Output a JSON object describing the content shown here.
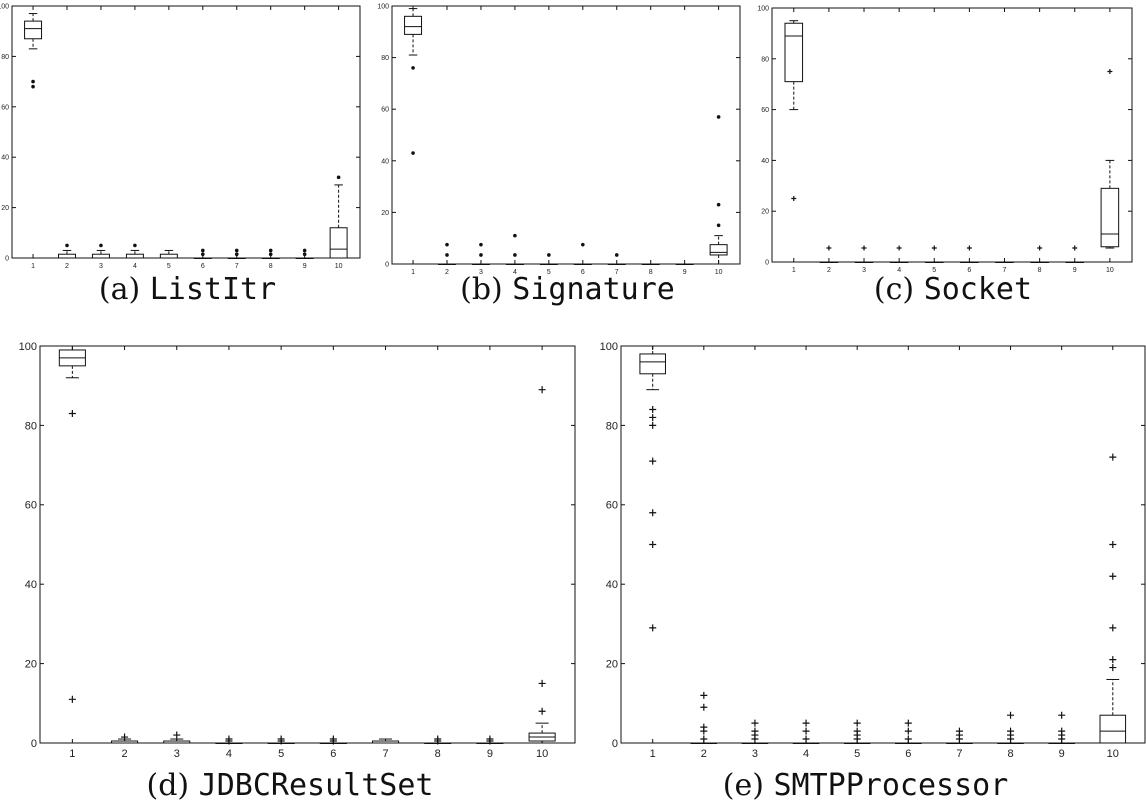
{
  "chart_data": [
    {
      "type": "boxplot",
      "caption_prefix": "(a)",
      "caption_name": "ListItr",
      "x": [
        1,
        2,
        3,
        4,
        5,
        6,
        7,
        8,
        9,
        10
      ],
      "ylim": [
        0,
        100
      ],
      "yticks": [
        0,
        20,
        40,
        60,
        80,
        100
      ],
      "outlier_marker": "dot",
      "boxes": [
        {
          "x": 1,
          "lw": 83,
          "q1": 87,
          "med": 91,
          "q3": 94,
          "uw": 97,
          "outliers": [
            70,
            68
          ]
        },
        {
          "x": 2,
          "lw": 0,
          "q1": 0,
          "med": 0,
          "q3": 1.5,
          "uw": 3,
          "outliers": [
            5
          ]
        },
        {
          "x": 3,
          "lw": 0,
          "q1": 0,
          "med": 0,
          "q3": 1.5,
          "uw": 3,
          "outliers": [
            5
          ]
        },
        {
          "x": 4,
          "lw": 0,
          "q1": 0,
          "med": 0,
          "q3": 1.5,
          "uw": 3,
          "outliers": [
            5
          ]
        },
        {
          "x": 5,
          "lw": 0,
          "q1": 0,
          "med": 0,
          "q3": 1.5,
          "uw": 3,
          "outliers": []
        },
        {
          "x": 6,
          "lw": 0,
          "q1": 0,
          "med": 0,
          "q3": 0,
          "uw": 0,
          "outliers": [
            1.5,
            3
          ]
        },
        {
          "x": 7,
          "lw": 0,
          "q1": 0,
          "med": 0,
          "q3": 0,
          "uw": 0,
          "outliers": [
            1.5,
            3
          ]
        },
        {
          "x": 8,
          "lw": 0,
          "q1": 0,
          "med": 0,
          "q3": 0,
          "uw": 0,
          "outliers": [
            1.5,
            3
          ]
        },
        {
          "x": 9,
          "lw": 0,
          "q1": 0,
          "med": 0,
          "q3": 0,
          "uw": 0,
          "outliers": [
            1.5,
            3
          ]
        },
        {
          "x": 10,
          "lw": 0,
          "q1": 0,
          "med": 3.5,
          "q3": 12,
          "uw": 29,
          "outliers": [
            32
          ]
        }
      ]
    },
    {
      "type": "boxplot",
      "caption_prefix": "(b)",
      "caption_name": "Signature",
      "x": [
        1,
        2,
        3,
        4,
        5,
        6,
        7,
        8,
        9,
        10
      ],
      "ylim": [
        0,
        100
      ],
      "yticks": [
        0,
        20,
        40,
        60,
        80,
        100
      ],
      "outlier_marker": "dot",
      "boxes": [
        {
          "x": 1,
          "lw": 81,
          "q1": 89,
          "med": 92,
          "q3": 96,
          "uw": 99,
          "outliers": [
            76,
            43
          ]
        },
        {
          "x": 2,
          "lw": 0,
          "q1": 0,
          "med": 0,
          "q3": 0,
          "uw": 0,
          "outliers": [
            3.5,
            7.5
          ]
        },
        {
          "x": 3,
          "lw": 0,
          "q1": 0,
          "med": 0,
          "q3": 0,
          "uw": 0,
          "outliers": [
            3.5,
            7.5
          ]
        },
        {
          "x": 4,
          "lw": 0,
          "q1": 0,
          "med": 0,
          "q3": 0,
          "uw": 0,
          "outliers": [
            3.5,
            11
          ]
        },
        {
          "x": 5,
          "lw": 0,
          "q1": 0,
          "med": 0,
          "q3": 0,
          "uw": 0,
          "outliers": [
            3.5
          ]
        },
        {
          "x": 6,
          "lw": 0,
          "q1": 0,
          "med": 0,
          "q3": 0,
          "uw": 0,
          "outliers": [
            7.5
          ]
        },
        {
          "x": 7,
          "lw": 0,
          "q1": 0,
          "med": 0,
          "q3": 0,
          "uw": 0,
          "outliers": [
            3.5
          ]
        },
        {
          "x": 8,
          "lw": 0,
          "q1": 0,
          "med": 0,
          "q3": 0,
          "uw": 0,
          "outliers": []
        },
        {
          "x": 9,
          "lw": 0,
          "q1": 0,
          "med": 0,
          "q3": 0,
          "uw": 0,
          "outliers": []
        },
        {
          "x": 10,
          "lw": 0,
          "q1": 3.5,
          "med": 4.5,
          "q3": 7.5,
          "uw": 11,
          "outliers": [
            15,
            23,
            57
          ]
        }
      ]
    },
    {
      "type": "boxplot",
      "caption_prefix": "(c)",
      "caption_name": "Socket",
      "x": [
        1,
        2,
        3,
        4,
        5,
        6,
        7,
        8,
        9,
        10
      ],
      "ylim": [
        0,
        100
      ],
      "yticks": [
        0,
        20,
        40,
        60,
        80,
        100
      ],
      "outlier_marker": "plus",
      "boxes": [
        {
          "x": 1,
          "lw": 60,
          "q1": 71,
          "med": 89,
          "q3": 94,
          "uw": 95,
          "outliers": [
            25
          ]
        },
        {
          "x": 2,
          "lw": 0,
          "q1": 0,
          "med": 0,
          "q3": 0,
          "uw": 0,
          "outliers": [
            5.5
          ]
        },
        {
          "x": 3,
          "lw": 0,
          "q1": 0,
          "med": 0,
          "q3": 0,
          "uw": 0,
          "outliers": [
            5.5
          ]
        },
        {
          "x": 4,
          "lw": 0,
          "q1": 0,
          "med": 0,
          "q3": 0,
          "uw": 0,
          "outliers": [
            5.5
          ]
        },
        {
          "x": 5,
          "lw": 0,
          "q1": 0,
          "med": 0,
          "q3": 0,
          "uw": 0,
          "outliers": [
            5.5
          ]
        },
        {
          "x": 6,
          "lw": 0,
          "q1": 0,
          "med": 0,
          "q3": 0,
          "uw": 0,
          "outliers": [
            5.5
          ]
        },
        {
          "x": 7,
          "lw": 0,
          "q1": 0,
          "med": 0,
          "q3": 0,
          "uw": 0,
          "outliers": []
        },
        {
          "x": 8,
          "lw": 0,
          "q1": 0,
          "med": 0,
          "q3": 0,
          "uw": 0,
          "outliers": [
            5.5
          ]
        },
        {
          "x": 9,
          "lw": 0,
          "q1": 0,
          "med": 0,
          "q3": 0,
          "uw": 0,
          "outliers": [
            5.5
          ]
        },
        {
          "x": 10,
          "lw": 5.5,
          "q1": 6,
          "med": 11,
          "q3": 29,
          "uw": 40,
          "outliers": [
            75
          ]
        }
      ]
    },
    {
      "type": "boxplot",
      "caption_prefix": "(d)",
      "caption_name": "JDBCResultSet",
      "x": [
        1,
        2,
        3,
        4,
        5,
        6,
        7,
        8,
        9,
        10
      ],
      "ylim": [
        0,
        100
      ],
      "yticks": [
        0,
        20,
        40,
        60,
        80,
        100
      ],
      "outlier_marker": "plus",
      "boxes": [
        {
          "x": 1,
          "lw": 92,
          "q1": 95,
          "med": 97,
          "q3": 99,
          "uw": 100,
          "outliers": [
            83,
            11
          ]
        },
        {
          "x": 2,
          "lw": 0,
          "q1": 0,
          "med": 0,
          "q3": 0.5,
          "uw": 1,
          "outliers": [
            1.5
          ]
        },
        {
          "x": 3,
          "lw": 0,
          "q1": 0,
          "med": 0,
          "q3": 0.5,
          "uw": 1,
          "outliers": [
            2
          ]
        },
        {
          "x": 4,
          "lw": 0,
          "q1": 0,
          "med": 0,
          "q3": 0,
          "uw": 0,
          "outliers": [
            0.5,
            1
          ]
        },
        {
          "x": 5,
          "lw": 0,
          "q1": 0,
          "med": 0,
          "q3": 0,
          "uw": 0,
          "outliers": [
            0.5,
            1
          ]
        },
        {
          "x": 6,
          "lw": 0,
          "q1": 0,
          "med": 0,
          "q3": 0,
          "uw": 0,
          "outliers": [
            0.5,
            1
          ]
        },
        {
          "x": 7,
          "lw": 0,
          "q1": 0,
          "med": 0,
          "q3": 0.5,
          "uw": 1,
          "outliers": []
        },
        {
          "x": 8,
          "lw": 0,
          "q1": 0,
          "med": 0,
          "q3": 0,
          "uw": 0,
          "outliers": [
            0.5,
            1
          ]
        },
        {
          "x": 9,
          "lw": 0,
          "q1": 0,
          "med": 0,
          "q3": 0,
          "uw": 0,
          "outliers": [
            0.5,
            1
          ]
        },
        {
          "x": 10,
          "lw": 0,
          "q1": 0.5,
          "med": 1.5,
          "q3": 2.5,
          "uw": 5,
          "outliers": [
            8,
            15,
            89
          ]
        }
      ]
    },
    {
      "type": "boxplot",
      "caption_prefix": "(e)",
      "caption_name": "SMTPProcessor",
      "x": [
        1,
        2,
        3,
        4,
        5,
        6,
        7,
        8,
        9,
        10
      ],
      "ylim": [
        0,
        100
      ],
      "yticks": [
        0,
        20,
        40,
        60,
        80,
        100
      ],
      "outlier_marker": "plus",
      "boxes": [
        {
          "x": 1,
          "lw": 89,
          "q1": 93,
          "med": 96,
          "q3": 98,
          "uw": 100,
          "outliers": [
            84,
            82,
            80,
            71,
            58,
            50,
            29
          ]
        },
        {
          "x": 2,
          "lw": 0,
          "q1": 0,
          "med": 0,
          "q3": 0,
          "uw": 0,
          "outliers": [
            1,
            3,
            4,
            9,
            12
          ]
        },
        {
          "x": 3,
          "lw": 0,
          "q1": 0,
          "med": 0,
          "q3": 0,
          "uw": 0,
          "outliers": [
            1,
            2,
            3,
            5
          ]
        },
        {
          "x": 4,
          "lw": 0,
          "q1": 0,
          "med": 0,
          "q3": 0,
          "uw": 0,
          "outliers": [
            1,
            3,
            5
          ]
        },
        {
          "x": 5,
          "lw": 0,
          "q1": 0,
          "med": 0,
          "q3": 0,
          "uw": 0,
          "outliers": [
            1,
            2,
            3,
            5
          ]
        },
        {
          "x": 6,
          "lw": 0,
          "q1": 0,
          "med": 0,
          "q3": 0,
          "uw": 0,
          "outliers": [
            1,
            3,
            5
          ]
        },
        {
          "x": 7,
          "lw": 0,
          "q1": 0,
          "med": 0,
          "q3": 0,
          "uw": 0,
          "outliers": [
            1,
            2,
            3
          ]
        },
        {
          "x": 8,
          "lw": 0,
          "q1": 0,
          "med": 0,
          "q3": 0,
          "uw": 0,
          "outliers": [
            1,
            2,
            3,
            7
          ]
        },
        {
          "x": 9,
          "lw": 0,
          "q1": 0,
          "med": 0,
          "q3": 0,
          "uw": 0,
          "outliers": [
            1,
            2,
            3,
            7
          ]
        },
        {
          "x": 10,
          "lw": 0,
          "q1": 0,
          "med": 3,
          "q3": 7,
          "uw": 16,
          "outliers": [
            19,
            21,
            29,
            42,
            50,
            72
          ]
        }
      ]
    }
  ]
}
